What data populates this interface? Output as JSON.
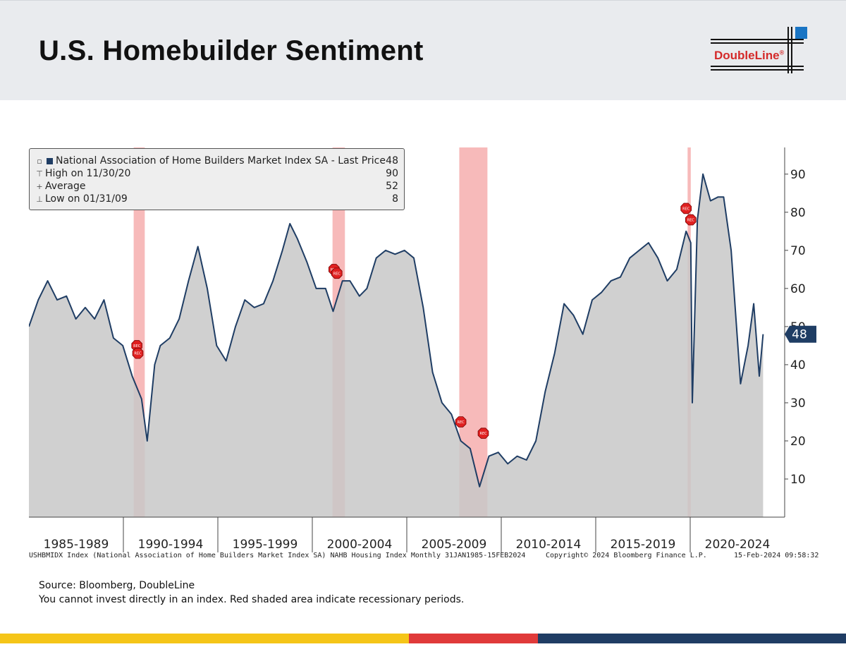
{
  "slide": {
    "title": "U.S. Homebuilder Sentiment",
    "logo_text": "DoubleLine",
    "logo_trademark": "®",
    "source_text": "Source: Bloomberg, DoubleLine",
    "disclaimer_text": "You cannot invest directly in an index. Red shaded area indicate recessionary periods.",
    "colors": {
      "header_bg": "#e9ebee",
      "brand_red": "#d42a2a",
      "brand_blue": "#1f3d64",
      "yellow": "#f5c518",
      "red_bar": "#e03a3a",
      "navy_bar": "#1f3d64"
    }
  },
  "legend": {
    "main_label": "National Association of Home Builders Market Index SA - Last Price",
    "main_value": "48",
    "high_label": "High on 11/30/20",
    "high_value": "90",
    "avg_label": "Average",
    "avg_value": "52",
    "low_label": "Low on 01/31/09",
    "low_value": "8"
  },
  "footer": {
    "index_desc": "USHBMIDX Index (National Association of Home Builders Market Index SA) NAHB Housing Index  Monthly 31JAN1985-15FEB2024",
    "copyright": "Copyright© 2024 Bloomberg Finance L.P.",
    "timestamp": "15-Feb-2024 09:58:32"
  },
  "chart_data": {
    "type": "area",
    "series": [
      {
        "name": "National Association of Home Builders Market Index SA",
        "last_value": 48,
        "x": [
          1985.0,
          1985.5,
          1986.0,
          1986.5,
          1987.0,
          1987.5,
          1988.0,
          1988.5,
          1989.0,
          1989.5,
          1990.0,
          1990.5,
          1991.0,
          1991.3,
          1991.7,
          1992.0,
          1992.5,
          1993.0,
          1993.5,
          1994.0,
          1994.5,
          1995.0,
          1995.5,
          1996.0,
          1996.5,
          1997.0,
          1997.5,
          1998.0,
          1998.5,
          1998.9,
          1999.3,
          1999.8,
          2000.3,
          2000.8,
          2001.2,
          2001.7,
          2002.1,
          2002.6,
          2003.0,
          2003.5,
          2004.0,
          2004.5,
          2005.0,
          2005.5,
          2006.0,
          2006.5,
          2007.0,
          2007.5,
          2008.0,
          2008.5,
          2009.0,
          2009.5,
          2010.0,
          2010.5,
          2011.0,
          2011.5,
          2012.0,
          2012.5,
          2013.0,
          2013.5,
          2014.0,
          2014.5,
          2015.0,
          2015.5,
          2016.0,
          2016.5,
          2017.0,
          2017.5,
          2018.0,
          2018.5,
          2019.0,
          2019.5,
          2020.0,
          2020.25,
          2020.33,
          2020.6,
          2020.9,
          2021.3,
          2021.7,
          2022.0,
          2022.4,
          2022.9,
          2023.3,
          2023.6,
          2023.9,
          2024.1
        ],
        "values": [
          50,
          57,
          62,
          57,
          58,
          52,
          55,
          52,
          57,
          47,
          45,
          37,
          31,
          20,
          40,
          45,
          47,
          52,
          62,
          71,
          60,
          45,
          41,
          50,
          57,
          55,
          56,
          62,
          70,
          77,
          73,
          67,
          60,
          60,
          54,
          62,
          62,
          58,
          60,
          68,
          70,
          69,
          70,
          68,
          55,
          38,
          30,
          27,
          20,
          18,
          8,
          16,
          17,
          14,
          16,
          15,
          20,
          33,
          43,
          56,
          53,
          48,
          57,
          59,
          62,
          63,
          68,
          70,
          72,
          68,
          62,
          65,
          75,
          72,
          30,
          78,
          90,
          83,
          84,
          84,
          70,
          35,
          45,
          56,
          37,
          48
        ],
        "color": "#1f3d64",
        "fill": "#c8c8c8"
      }
    ],
    "recessions": [
      {
        "start": 1990.58,
        "end": 1991.17
      },
      {
        "start": 2001.17,
        "end": 2001.83
      },
      {
        "start": 2007.92,
        "end": 2009.42
      },
      {
        "start": 2020.08,
        "end": 2020.25
      }
    ],
    "rec_markers": [
      {
        "x": 1990.75,
        "y": 45,
        "label": "REC"
      },
      {
        "x": 1990.8,
        "y": 43,
        "label": "REC"
      },
      {
        "x": 2001.25,
        "y": 65,
        "label": "REC"
      },
      {
        "x": 2001.4,
        "y": 64,
        "label": "REC"
      },
      {
        "x": 2008.0,
        "y": 25,
        "label": "REC"
      },
      {
        "x": 2009.2,
        "y": 22,
        "label": "REC"
      },
      {
        "x": 2020.0,
        "y": 81,
        "label": "REC"
      },
      {
        "x": 2020.25,
        "y": 78,
        "label": "REC"
      }
    ],
    "x_categories": [
      "1985-1989",
      "1990-1994",
      "1995-1999",
      "2000-2004",
      "2005-2009",
      "2010-2014",
      "2015-2019",
      "2020-2024"
    ],
    "y_ticks": [
      10,
      20,
      30,
      40,
      50,
      60,
      70,
      80,
      90
    ],
    "ylim": [
      0,
      97
    ],
    "xlim": [
      1985.0,
      2025.25
    ],
    "y_axis_side": "right",
    "last_price_label": "48",
    "grid": false,
    "legend_position": "top-left"
  }
}
